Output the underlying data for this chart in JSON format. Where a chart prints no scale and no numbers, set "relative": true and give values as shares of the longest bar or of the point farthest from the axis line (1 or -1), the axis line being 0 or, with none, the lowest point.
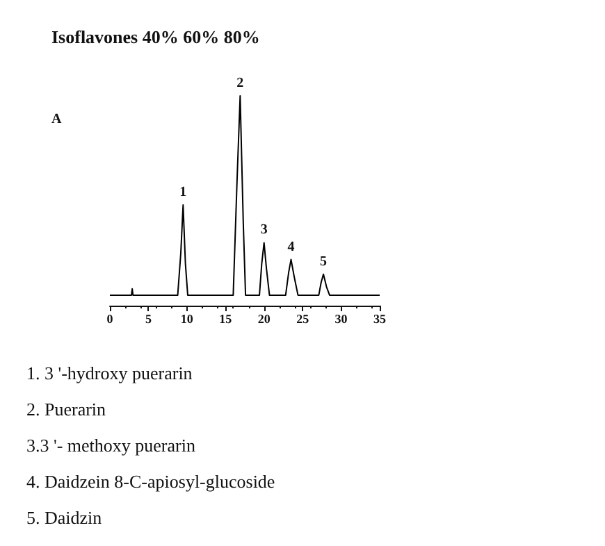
{
  "chart_data": {
    "type": "line",
    "title": "Isoflavones 40% 60% 80%",
    "subtitle": "A",
    "relative": true,
    "color": "#000000",
    "marker": "none",
    "x": [
      0,
      2.8,
      2.9,
      3.0,
      8.8,
      9.2,
      9.5,
      9.8,
      10.1,
      16.0,
      16.5,
      16.9,
      17.3,
      17.6,
      19.4,
      19.7,
      20.0,
      20.3,
      20.7,
      22.8,
      23.2,
      23.5,
      23.9,
      24.4,
      27.1,
      27.4,
      27.7,
      28.1,
      28.5,
      35
    ],
    "values": [
      0.05,
      0.05,
      0.08,
      0.05,
      0.05,
      0.25,
      0.48,
      0.2,
      0.05,
      0.05,
      0.6,
      1,
      0.4,
      0.05,
      0.05,
      0.2,
      0.3,
      0.18,
      0.05,
      0.05,
      0.16,
      0.22,
      0.14,
      0.05,
      0.05,
      0.11,
      0.15,
      0.09,
      0.05,
      0.05
    ],
    "xlim": [
      0,
      35
    ],
    "xticks": [
      0,
      5,
      10,
      15,
      20,
      25,
      30,
      35
    ],
    "annotations": [
      {
        "text": "1",
        "x": 9.5,
        "y": 0.48
      },
      {
        "text": "2",
        "x": 16.9,
        "y": 1
      },
      {
        "text": "3",
        "x": 20.0,
        "y": 0.3
      },
      {
        "text": "4",
        "x": 23.5,
        "y": 0.22
      },
      {
        "text": "5",
        "x": 27.7,
        "y": 0.15
      },
      "1. 3 '-hydroxy puerarin",
      "2. Puerarin",
      "3.3 '- methoxy puerarin",
      "4. Daidzein 8-C-apiosyl-glucoside",
      "5. Daidzin"
    ]
  }
}
